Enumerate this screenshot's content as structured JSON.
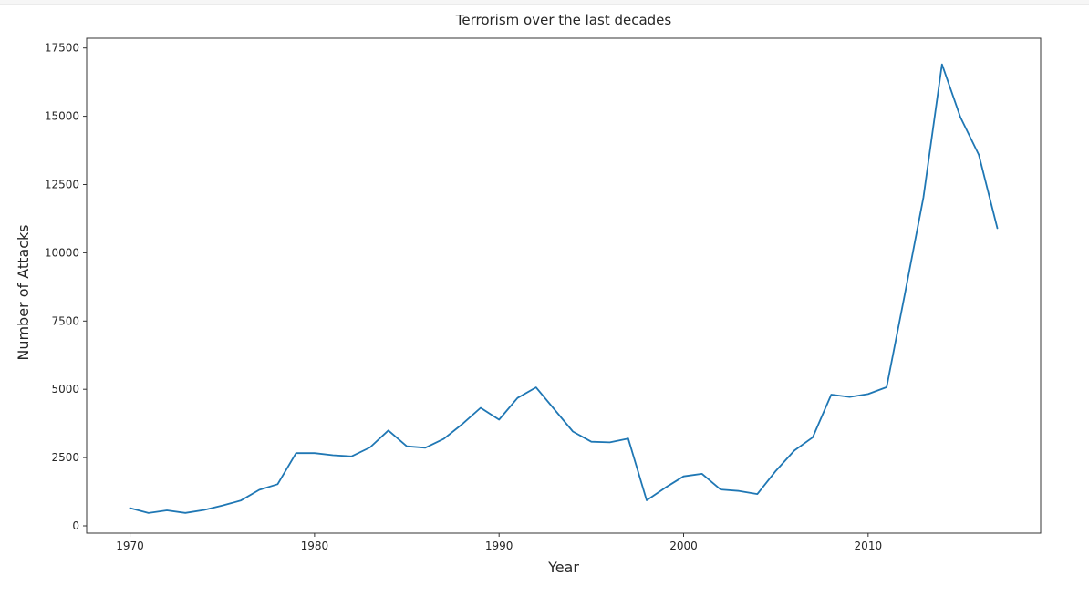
{
  "chart_data": {
    "type": "line",
    "title": "Terrorism over the last decades",
    "xlabel": "Year",
    "ylabel": "Number of Attacks",
    "line_color": "#1f77b4",
    "background_color": "#ffffff",
    "grid": false,
    "legend": null,
    "x": [
      1970,
      1971,
      1972,
      1973,
      1974,
      1975,
      1976,
      1977,
      1978,
      1979,
      1980,
      1981,
      1982,
      1983,
      1984,
      1985,
      1986,
      1987,
      1988,
      1989,
      1990,
      1991,
      1992,
      1994,
      1995,
      1996,
      1997,
      1998,
      1999,
      2000,
      2001,
      2002,
      2003,
      2004,
      2005,
      2006,
      2007,
      2008,
      2009,
      2010,
      2011,
      2012,
      2013,
      2014,
      2015,
      2016,
      2017
    ],
    "y": [
      651,
      471,
      568,
      473,
      581,
      740,
      923,
      1319,
      1526,
      2662,
      2662,
      2586,
      2544,
      2870,
      3495,
      2915,
      2860,
      3183,
      3721,
      4324,
      3887,
      4683,
      5071,
      3456,
      3081,
      3058,
      3197,
      934,
      1395,
      1814,
      1906,
      1333,
      1278,
      1166,
      2017,
      2758,
      3242,
      4805,
      4721,
      4826,
      5076,
      8522,
      12036,
      16903,
      14965,
      13587,
      10900
    ],
    "xlim": [
      1967.65,
      2019.35
    ],
    "ylim": [
      -267,
      17857
    ],
    "xticks": [
      1970,
      1980,
      1990,
      2000,
      2010
    ],
    "yticks": [
      0,
      2500,
      5000,
      7500,
      10000,
      12500,
      15000,
      17500
    ]
  }
}
